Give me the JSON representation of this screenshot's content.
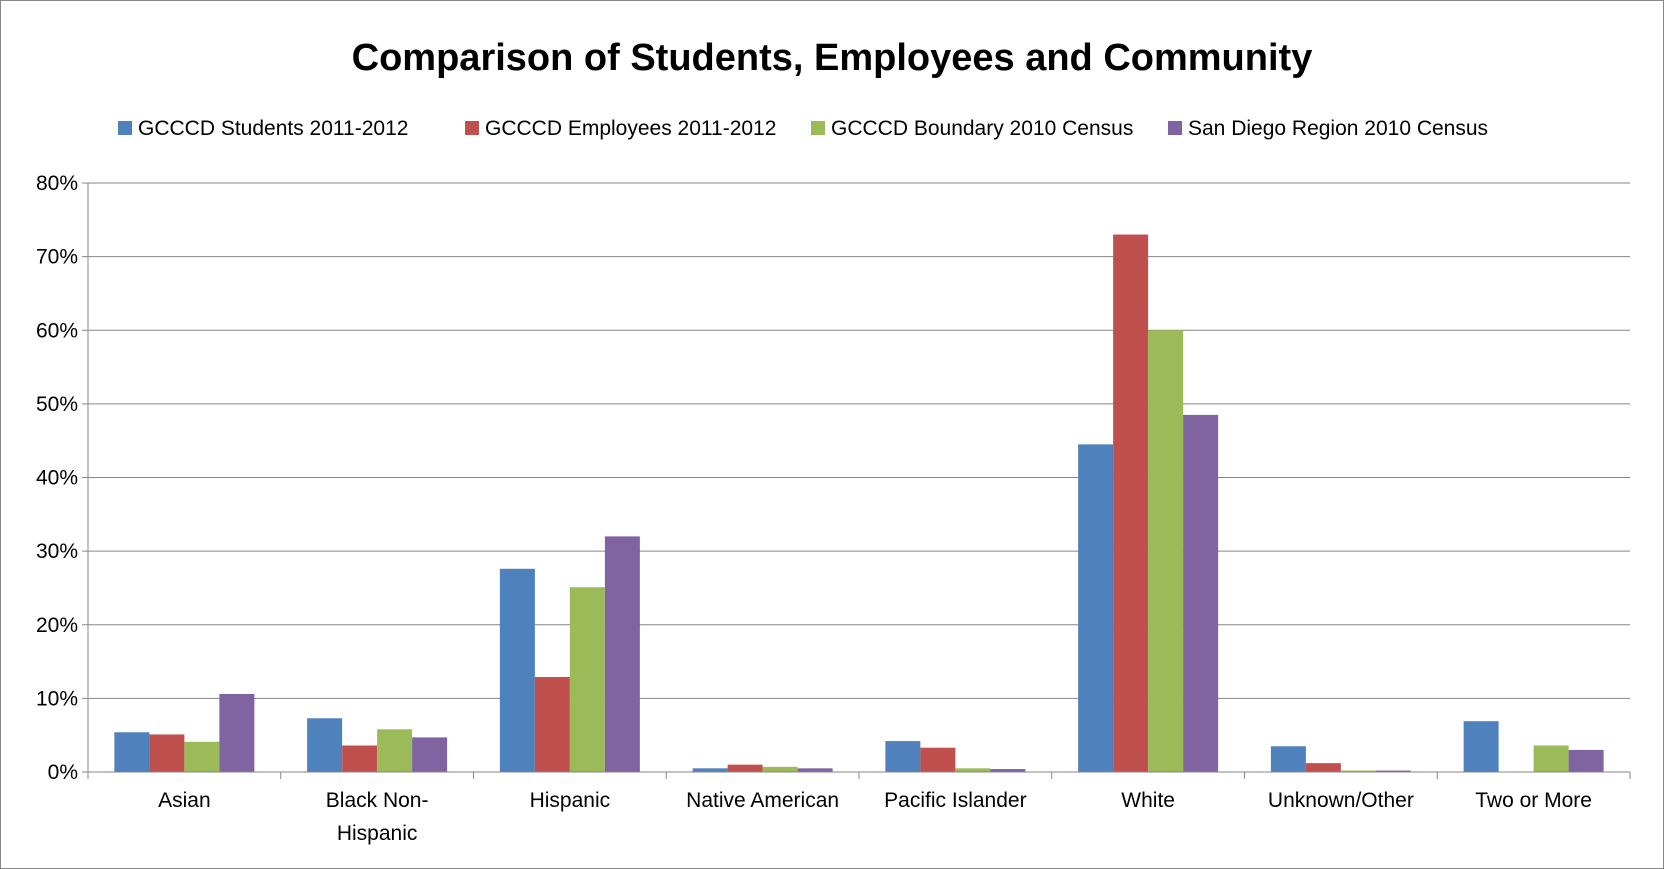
{
  "chart_data": {
    "type": "bar",
    "title": "Comparison of Students, Employees and Community",
    "categories": [
      "Asian",
      "Black Non-Hispanic",
      "Hispanic",
      "Native American",
      "Pacific Islander",
      "White",
      "Unknown/Other",
      "Two or More"
    ],
    "category_lines": [
      [
        "Asian"
      ],
      [
        "Black Non-",
        "Hispanic"
      ],
      [
        "Hispanic"
      ],
      [
        "Native American"
      ],
      [
        "Pacific Islander"
      ],
      [
        "White"
      ],
      [
        "Unknown/Other"
      ],
      [
        "Two or More"
      ]
    ],
    "series": [
      {
        "name": "GCCCD Students 2011-2012",
        "color": "#4F81BD",
        "values": [
          5.4,
          7.3,
          27.6,
          0.5,
          4.2,
          44.5,
          3.5,
          6.9
        ]
      },
      {
        "name": "GCCCD Employees 2011-2012",
        "color": "#C0504D",
        "values": [
          5.1,
          3.6,
          12.9,
          1.0,
          3.3,
          73.0,
          1.2,
          0.0
        ]
      },
      {
        "name": "GCCCD Boundary 2010 Census",
        "color": "#9BBB59",
        "values": [
          4.1,
          5.8,
          25.1,
          0.7,
          0.5,
          60.0,
          0.2,
          3.6
        ]
      },
      {
        "name": "San Diego Region 2010 Census",
        "color": "#8064A2",
        "values": [
          10.6,
          4.7,
          32.0,
          0.5,
          0.4,
          48.5,
          0.2,
          3.0
        ]
      }
    ],
    "ylim": [
      0,
      80
    ],
    "y_ticks": [
      0,
      10,
      20,
      30,
      40,
      50,
      60,
      70,
      80
    ],
    "y_tick_labels": [
      "0%",
      "10%",
      "20%",
      "30%",
      "40%",
      "50%",
      "60%",
      "70%",
      "80%"
    ],
    "xlabel": "",
    "ylabel": "",
    "grid": true,
    "legend_position": "top"
  }
}
